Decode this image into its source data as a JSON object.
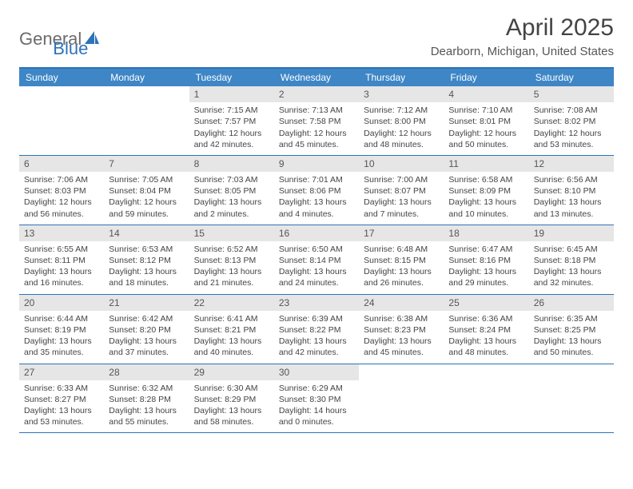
{
  "logo": {
    "text1": "General",
    "text2": "Blue"
  },
  "title": "April 2025",
  "location": "Dearborn, Michigan, United States",
  "colors": {
    "brand_blue": "#2d73b8",
    "header_bg": "#3e86c6",
    "daynum_bg": "#e6e6e6",
    "text": "#444444"
  },
  "day_headers": [
    "Sunday",
    "Monday",
    "Tuesday",
    "Wednesday",
    "Thursday",
    "Friday",
    "Saturday"
  ],
  "weeks": [
    [
      null,
      null,
      {
        "n": "1",
        "sr": "Sunrise: 7:15 AM",
        "ss": "Sunset: 7:57 PM",
        "d1": "Daylight: 12 hours",
        "d2": "and 42 minutes."
      },
      {
        "n": "2",
        "sr": "Sunrise: 7:13 AM",
        "ss": "Sunset: 7:58 PM",
        "d1": "Daylight: 12 hours",
        "d2": "and 45 minutes."
      },
      {
        "n": "3",
        "sr": "Sunrise: 7:12 AM",
        "ss": "Sunset: 8:00 PM",
        "d1": "Daylight: 12 hours",
        "d2": "and 48 minutes."
      },
      {
        "n": "4",
        "sr": "Sunrise: 7:10 AM",
        "ss": "Sunset: 8:01 PM",
        "d1": "Daylight: 12 hours",
        "d2": "and 50 minutes."
      },
      {
        "n": "5",
        "sr": "Sunrise: 7:08 AM",
        "ss": "Sunset: 8:02 PM",
        "d1": "Daylight: 12 hours",
        "d2": "and 53 minutes."
      }
    ],
    [
      {
        "n": "6",
        "sr": "Sunrise: 7:06 AM",
        "ss": "Sunset: 8:03 PM",
        "d1": "Daylight: 12 hours",
        "d2": "and 56 minutes."
      },
      {
        "n": "7",
        "sr": "Sunrise: 7:05 AM",
        "ss": "Sunset: 8:04 PM",
        "d1": "Daylight: 12 hours",
        "d2": "and 59 minutes."
      },
      {
        "n": "8",
        "sr": "Sunrise: 7:03 AM",
        "ss": "Sunset: 8:05 PM",
        "d1": "Daylight: 13 hours",
        "d2": "and 2 minutes."
      },
      {
        "n": "9",
        "sr": "Sunrise: 7:01 AM",
        "ss": "Sunset: 8:06 PM",
        "d1": "Daylight: 13 hours",
        "d2": "and 4 minutes."
      },
      {
        "n": "10",
        "sr": "Sunrise: 7:00 AM",
        "ss": "Sunset: 8:07 PM",
        "d1": "Daylight: 13 hours",
        "d2": "and 7 minutes."
      },
      {
        "n": "11",
        "sr": "Sunrise: 6:58 AM",
        "ss": "Sunset: 8:09 PM",
        "d1": "Daylight: 13 hours",
        "d2": "and 10 minutes."
      },
      {
        "n": "12",
        "sr": "Sunrise: 6:56 AM",
        "ss": "Sunset: 8:10 PM",
        "d1": "Daylight: 13 hours",
        "d2": "and 13 minutes."
      }
    ],
    [
      {
        "n": "13",
        "sr": "Sunrise: 6:55 AM",
        "ss": "Sunset: 8:11 PM",
        "d1": "Daylight: 13 hours",
        "d2": "and 16 minutes."
      },
      {
        "n": "14",
        "sr": "Sunrise: 6:53 AM",
        "ss": "Sunset: 8:12 PM",
        "d1": "Daylight: 13 hours",
        "d2": "and 18 minutes."
      },
      {
        "n": "15",
        "sr": "Sunrise: 6:52 AM",
        "ss": "Sunset: 8:13 PM",
        "d1": "Daylight: 13 hours",
        "d2": "and 21 minutes."
      },
      {
        "n": "16",
        "sr": "Sunrise: 6:50 AM",
        "ss": "Sunset: 8:14 PM",
        "d1": "Daylight: 13 hours",
        "d2": "and 24 minutes."
      },
      {
        "n": "17",
        "sr": "Sunrise: 6:48 AM",
        "ss": "Sunset: 8:15 PM",
        "d1": "Daylight: 13 hours",
        "d2": "and 26 minutes."
      },
      {
        "n": "18",
        "sr": "Sunrise: 6:47 AM",
        "ss": "Sunset: 8:16 PM",
        "d1": "Daylight: 13 hours",
        "d2": "and 29 minutes."
      },
      {
        "n": "19",
        "sr": "Sunrise: 6:45 AM",
        "ss": "Sunset: 8:18 PM",
        "d1": "Daylight: 13 hours",
        "d2": "and 32 minutes."
      }
    ],
    [
      {
        "n": "20",
        "sr": "Sunrise: 6:44 AM",
        "ss": "Sunset: 8:19 PM",
        "d1": "Daylight: 13 hours",
        "d2": "and 35 minutes."
      },
      {
        "n": "21",
        "sr": "Sunrise: 6:42 AM",
        "ss": "Sunset: 8:20 PM",
        "d1": "Daylight: 13 hours",
        "d2": "and 37 minutes."
      },
      {
        "n": "22",
        "sr": "Sunrise: 6:41 AM",
        "ss": "Sunset: 8:21 PM",
        "d1": "Daylight: 13 hours",
        "d2": "and 40 minutes."
      },
      {
        "n": "23",
        "sr": "Sunrise: 6:39 AM",
        "ss": "Sunset: 8:22 PM",
        "d1": "Daylight: 13 hours",
        "d2": "and 42 minutes."
      },
      {
        "n": "24",
        "sr": "Sunrise: 6:38 AM",
        "ss": "Sunset: 8:23 PM",
        "d1": "Daylight: 13 hours",
        "d2": "and 45 minutes."
      },
      {
        "n": "25",
        "sr": "Sunrise: 6:36 AM",
        "ss": "Sunset: 8:24 PM",
        "d1": "Daylight: 13 hours",
        "d2": "and 48 minutes."
      },
      {
        "n": "26",
        "sr": "Sunrise: 6:35 AM",
        "ss": "Sunset: 8:25 PM",
        "d1": "Daylight: 13 hours",
        "d2": "and 50 minutes."
      }
    ],
    [
      {
        "n": "27",
        "sr": "Sunrise: 6:33 AM",
        "ss": "Sunset: 8:27 PM",
        "d1": "Daylight: 13 hours",
        "d2": "and 53 minutes."
      },
      {
        "n": "28",
        "sr": "Sunrise: 6:32 AM",
        "ss": "Sunset: 8:28 PM",
        "d1": "Daylight: 13 hours",
        "d2": "and 55 minutes."
      },
      {
        "n": "29",
        "sr": "Sunrise: 6:30 AM",
        "ss": "Sunset: 8:29 PM",
        "d1": "Daylight: 13 hours",
        "d2": "and 58 minutes."
      },
      {
        "n": "30",
        "sr": "Sunrise: 6:29 AM",
        "ss": "Sunset: 8:30 PM",
        "d1": "Daylight: 14 hours",
        "d2": "and 0 minutes."
      },
      null,
      null,
      null
    ]
  ]
}
